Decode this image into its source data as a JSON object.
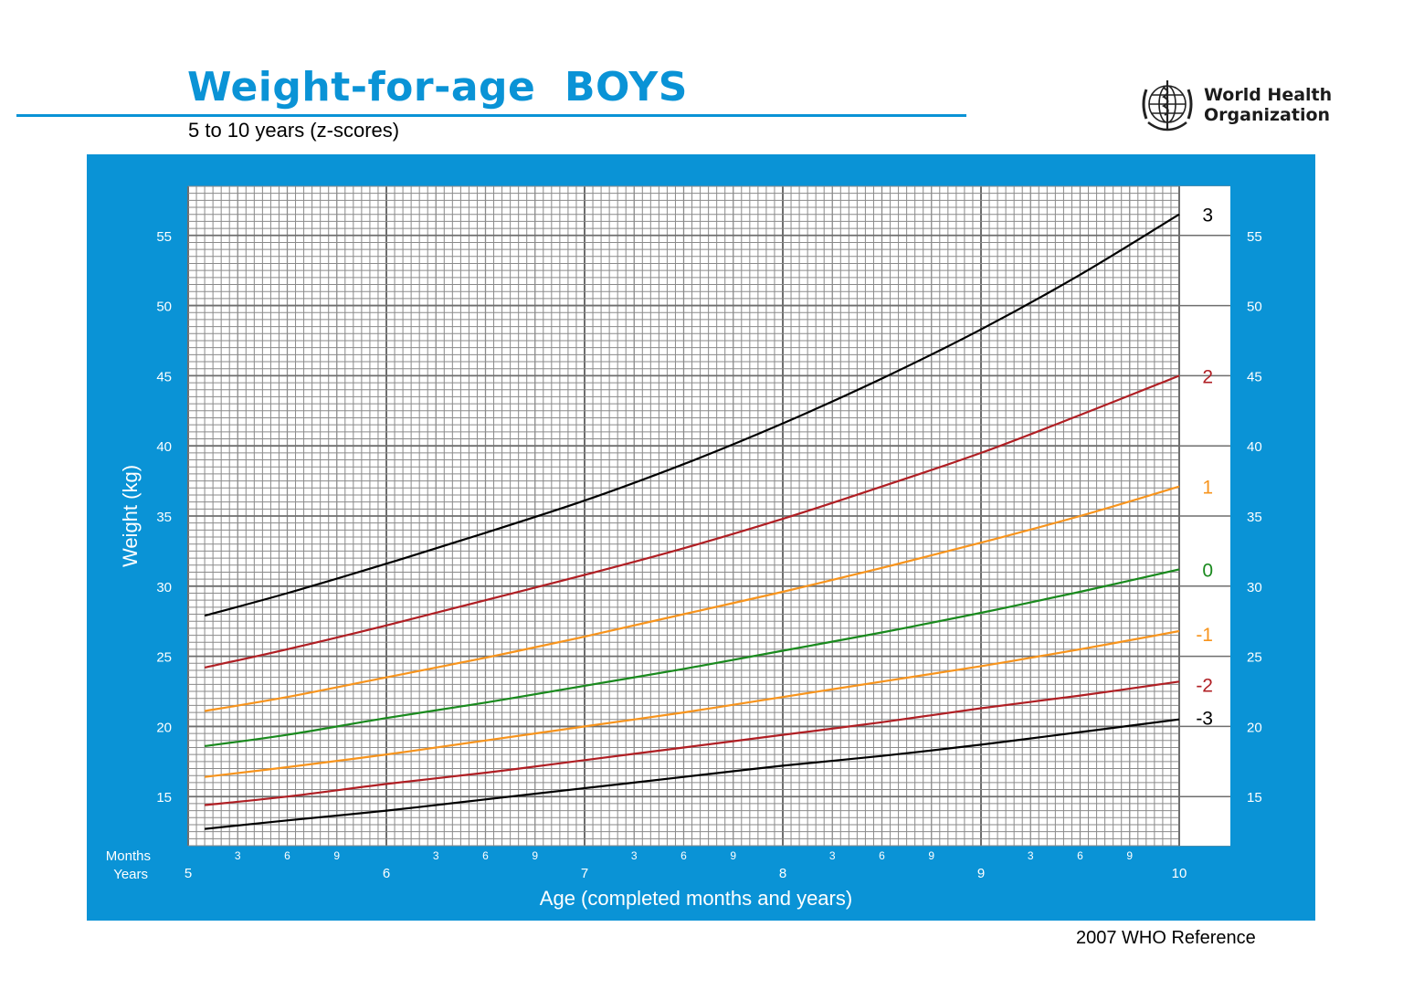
{
  "header": {
    "title": "Weight-for-age  BOYS",
    "subtitle": "5 to 10 years (z-scores)"
  },
  "logo": {
    "line1": "World Health",
    "line2": "Organization"
  },
  "footer": {
    "reference": "2007 WHO Reference"
  },
  "colors": {
    "frame": "#0a93d6",
    "title": "#0a93d6",
    "black": "#000000",
    "red": "#b01f24",
    "orange": "#f7941d",
    "green": "#1a8a1e"
  },
  "chart_data": {
    "type": "line",
    "xlabel": "Age (completed months and years)",
    "ylabel": "Weight (kg)",
    "x_unit": "months",
    "xlim": [
      60,
      120
    ],
    "ylim": [
      11.5,
      58.5
    ],
    "y_ticks": [
      15,
      20,
      25,
      30,
      35,
      40,
      45,
      50,
      55
    ],
    "axis_row_labels": {
      "months": "Months",
      "years": "Years"
    },
    "year_ticks": [
      {
        "x": 60,
        "label": "5"
      },
      {
        "x": 72,
        "label": "6"
      },
      {
        "x": 84,
        "label": "7"
      },
      {
        "x": 96,
        "label": "8"
      },
      {
        "x": 108,
        "label": "9"
      },
      {
        "x": 120,
        "label": "10"
      }
    ],
    "month_tick_labels": [
      "3",
      "6",
      "9"
    ],
    "grid": true,
    "series": [
      {
        "name": "3",
        "color": "#000000",
        "x": [
          61,
          66,
          72,
          78,
          84,
          90,
          96,
          102,
          108,
          114,
          120
        ],
        "y": [
          27.9,
          29.5,
          31.6,
          33.8,
          36.1,
          38.7,
          41.6,
          44.8,
          48.3,
          52.2,
          56.5
        ]
      },
      {
        "name": "2",
        "color": "#b01f24",
        "x": [
          61,
          66,
          72,
          78,
          84,
          90,
          96,
          102,
          108,
          114,
          120
        ],
        "y": [
          24.2,
          25.5,
          27.2,
          29.0,
          30.8,
          32.7,
          34.8,
          37.1,
          39.5,
          42.2,
          45.0
        ]
      },
      {
        "name": "1",
        "color": "#f7941d",
        "x": [
          61,
          66,
          72,
          78,
          84,
          90,
          96,
          102,
          108,
          114,
          120
        ],
        "y": [
          21.1,
          22.1,
          23.5,
          24.9,
          26.4,
          28.0,
          29.6,
          31.3,
          33.1,
          35.0,
          37.1
        ]
      },
      {
        "name": "0",
        "color": "#1a8a1e",
        "x": [
          61,
          66,
          72,
          78,
          84,
          90,
          96,
          102,
          108,
          114,
          120
        ],
        "y": [
          18.6,
          19.4,
          20.6,
          21.7,
          22.9,
          24.1,
          25.4,
          26.7,
          28.1,
          29.6,
          31.2
        ]
      },
      {
        "name": "-1",
        "color": "#f7941d",
        "x": [
          61,
          66,
          72,
          78,
          84,
          90,
          96,
          102,
          108,
          114,
          120
        ],
        "y": [
          16.4,
          17.1,
          18.0,
          19.0,
          20.0,
          21.0,
          22.1,
          23.2,
          24.3,
          25.5,
          26.8
        ]
      },
      {
        "name": "-2",
        "color": "#b01f24",
        "x": [
          61,
          66,
          72,
          78,
          84,
          90,
          96,
          102,
          108,
          114,
          120
        ],
        "y": [
          14.4,
          15.0,
          15.9,
          16.7,
          17.6,
          18.5,
          19.4,
          20.3,
          21.3,
          22.2,
          23.2
        ]
      },
      {
        "name": "-3",
        "color": "#000000",
        "x": [
          61,
          66,
          72,
          78,
          84,
          90,
          96,
          102,
          108,
          114,
          120
        ],
        "y": [
          12.7,
          13.3,
          14.0,
          14.8,
          15.6,
          16.4,
          17.2,
          17.9,
          18.7,
          19.6,
          20.5
        ]
      }
    ]
  }
}
